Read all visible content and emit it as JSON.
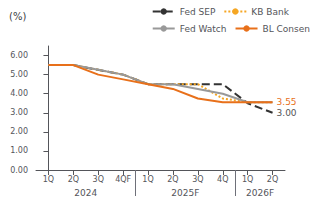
{
  "chart_data": {
    "type": "line",
    "title": "(%)",
    "categories": [
      "1Q",
      "2Q",
      "3Q",
      "4QF",
      "1Q",
      "2Q",
      "3Q",
      "4Q",
      "1Q",
      "2Q"
    ],
    "category_groups": [
      "2024",
      "2024",
      "2024",
      "2024",
      "2025F",
      "2025F",
      "2025F",
      "2025F",
      "2026F",
      "2026F"
    ],
    "series": [
      {
        "name": "Fed SEP",
        "color": "#333333",
        "line_style": "dashed",
        "values": [
          5.5,
          5.5,
          5.25,
          5.0,
          4.5,
          4.5,
          4.5,
          4.5,
          3.5,
          3.0
        ]
      },
      {
        "name": "KB Bank",
        "color": "#f5a623",
        "line_style": "dotted",
        "values": [
          5.5,
          5.5,
          5.25,
          5.0,
          4.5,
          4.5,
          4.5,
          3.75,
          3.55,
          3.55
        ]
      },
      {
        "name": "Fed Watch",
        "color": "#999999",
        "line_style": "solid",
        "values": [
          5.5,
          5.5,
          5.25,
          5.0,
          4.5,
          4.5,
          4.25,
          4.0,
          3.55,
          3.55
        ]
      },
      {
        "name": "BL Consen",
        "color": "#e8701a",
        "line_style": "solid",
        "values": [
          5.5,
          5.5,
          5.0,
          4.75,
          4.5,
          4.25,
          3.75,
          3.55,
          3.55,
          3.55
        ]
      }
    ],
    "ylim": [
      0.0,
      6.5
    ],
    "yticks": [
      {
        "value": 0,
        "label": "0.00"
      },
      {
        "value": 1,
        "label": "1.00"
      },
      {
        "value": 2,
        "label": "2.00"
      },
      {
        "value": 3,
        "label": "3.00"
      },
      {
        "value": 4,
        "label": "4.00"
      },
      {
        "value": 5,
        "label": "5.00"
      },
      {
        "value": 6,
        "label": "6.00"
      }
    ],
    "grid": false,
    "legend": "upper right",
    "annotations": [
      {
        "text": "3.55",
        "series": "BL Consen",
        "color": "#e8701a"
      },
      {
        "text": "3.00",
        "series": "Fed SEP",
        "color": "#555555"
      }
    ]
  }
}
